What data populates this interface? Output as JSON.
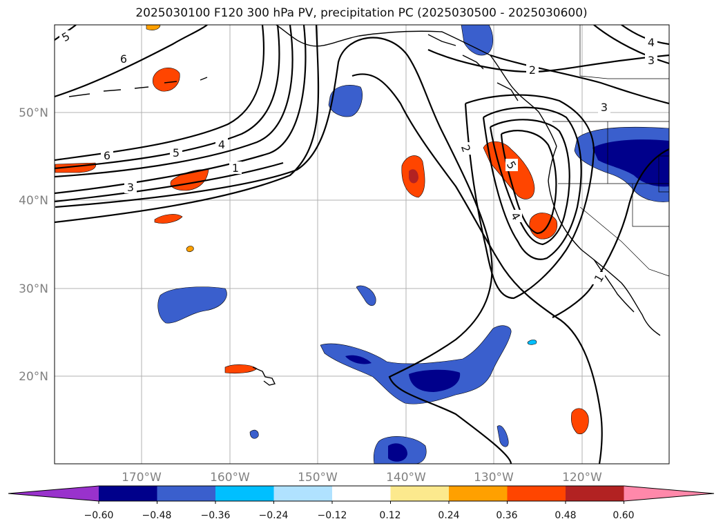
{
  "title": "2025030100 F120 300 hPa PV, precipitation PC (2025030500 - 2025030600)",
  "lat_ticks": [
    "50°N",
    "40°N",
    "30°N",
    "20°N"
  ],
  "lon_ticks": [
    "170°W",
    "160°W",
    "150°W",
    "140°W",
    "130°W",
    "120°W"
  ],
  "colorbar": {
    "ticks": [
      "−0.60",
      "−0.48",
      "−0.36",
      "−0.24",
      "−0.12",
      "0.12",
      "0.24",
      "0.36",
      "0.48",
      "0.60"
    ],
    "colors": [
      "#9932cc",
      "#00008b",
      "#3a5fcd",
      "#00bfff",
      "#b0e2ff",
      "#ffffff",
      "#fce98d",
      "#ffa000",
      "#ff4500",
      "#b22222",
      "#ff88aa"
    ]
  },
  "pv_contour_labels": [
    "5",
    "6",
    "6",
    "5",
    "4",
    "1",
    "3",
    "2",
    "3",
    "2",
    "5",
    "4",
    "1",
    "4",
    "3"
  ],
  "colors": {
    "land_outline": "#000000",
    "grid": "#b0b0b0"
  }
}
